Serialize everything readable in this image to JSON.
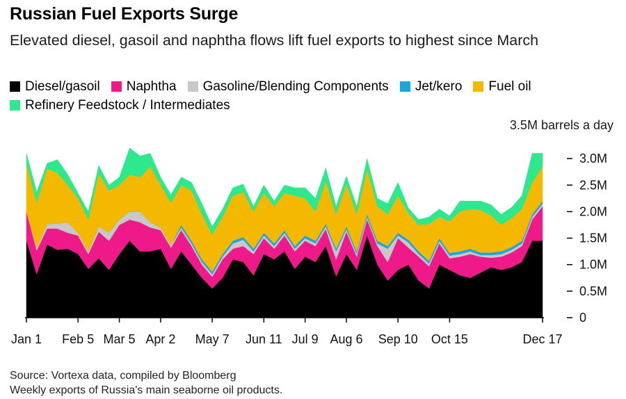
{
  "title": "Russian Fuel Exports Surge",
  "subtitle": "Elevated diesel, gasoil and naphtha flows lift fuel exports to highest since March",
  "unit_label": "3.5M barrels a day",
  "source": "Source: Vortexa data, compiled by Bloomberg",
  "note": "Weekly exports of Russia's main seaborne oil products.",
  "chart_data": {
    "type": "area",
    "stacked": true,
    "unit": "M barrels a day",
    "ylim": [
      0,
      3.5
    ],
    "y_ticks": [
      0,
      0.5,
      1,
      1.5,
      2,
      2.5,
      3
    ],
    "y_tick_labels": [
      "0",
      "0.5M",
      "1.0M",
      "1.5M",
      "2.0M",
      "2.5M",
      "3.0M"
    ],
    "y_axis_side": "right",
    "grid": false,
    "legend_position": "top",
    "x_tick_labels": [
      "Jan 1",
      "Feb 5",
      "Mar 5",
      "Apr 2",
      "May 7",
      "Jun 11",
      "Jul 9",
      "Aug 6",
      "Sep 10",
      "Oct 15",
      "Dec 17"
    ],
    "x_tick_weeks": [
      1,
      6,
      10,
      14,
      19,
      24,
      28,
      32,
      37,
      42,
      51
    ],
    "x": [
      1,
      2,
      3,
      4,
      5,
      6,
      7,
      8,
      9,
      10,
      11,
      12,
      13,
      14,
      15,
      16,
      17,
      18,
      19,
      20,
      21,
      22,
      23,
      24,
      25,
      26,
      27,
      28,
      29,
      30,
      31,
      32,
      33,
      34,
      35,
      36,
      37,
      38,
      39,
      40,
      41,
      42,
      43,
      44,
      45,
      46,
      47,
      48,
      49,
      50,
      51
    ],
    "series": [
      {
        "name": "Diesel/gasoil",
        "color": "#000000",
        "values": [
          1.45,
          0.82,
          1.38,
          1.28,
          1.3,
          1.2,
          0.92,
          1.12,
          0.9,
          1.2,
          1.45,
          1.25,
          1.25,
          1.3,
          0.92,
          1.25,
          1.0,
          0.75,
          0.55,
          0.75,
          1.1,
          1.05,
          0.8,
          1.2,
          1.1,
          1.25,
          0.92,
          1.15,
          1.05,
          1.35,
          0.78,
          1.2,
          0.9,
          1.55,
          1.0,
          0.7,
          0.9,
          1.0,
          0.7,
          0.55,
          1.0,
          0.9,
          0.8,
          0.75,
          0.85,
          0.95,
          0.9,
          0.95,
          1.05,
          1.45,
          1.45
        ]
      },
      {
        "name": "Naphtha",
        "color": "#ee1a8a",
        "values": [
          0.55,
          0.45,
          0.3,
          0.4,
          0.3,
          0.35,
          0.28,
          0.5,
          0.55,
          0.55,
          0.4,
          0.55,
          0.45,
          0.35,
          0.4,
          0.4,
          0.35,
          0.25,
          0.22,
          0.35,
          0.2,
          0.3,
          0.4,
          0.3,
          0.2,
          0.3,
          0.33,
          0.3,
          0.3,
          0.32,
          0.32,
          0.42,
          0.25,
          0.3,
          0.35,
          0.35,
          0.6,
          0.32,
          0.45,
          0.42,
          0.4,
          0.22,
          0.35,
          0.45,
          0.3,
          0.18,
          0.25,
          0.28,
          0.3,
          0.4,
          0.65
        ]
      },
      {
        "name": "Gasoline/Blending Components",
        "color": "#c8c8c8",
        "values": [
          0.0,
          0.05,
          0.08,
          0.1,
          0.2,
          0.05,
          0.05,
          0.1,
          0.15,
          0.1,
          0.15,
          0.2,
          0.1,
          0.05,
          0.05,
          0.05,
          0.05,
          0.05,
          0.05,
          0.05,
          0.1,
          0.12,
          0.05,
          0.05,
          0.05,
          0.05,
          0.05,
          0.05,
          0.05,
          0.05,
          0.15,
          0.05,
          0.05,
          0.05,
          0.05,
          0.25,
          0.05,
          0.1,
          0.05,
          0.05,
          0.05,
          0.05,
          0.05,
          0.05,
          0.03,
          0.05,
          0.05,
          0.05,
          0.05,
          0.05,
          0.05
        ]
      },
      {
        "name": "Jet/kero",
        "color": "#1aa6e0",
        "values": [
          0.0,
          0.0,
          0.0,
          0.0,
          0.0,
          0.0,
          0.0,
          0.0,
          0.0,
          0.0,
          0.0,
          0.0,
          0.0,
          0.0,
          0.0,
          0.05,
          0.05,
          0.05,
          0.05,
          0.05,
          0.05,
          0.05,
          0.05,
          0.05,
          0.05,
          0.05,
          0.05,
          0.05,
          0.05,
          0.05,
          0.05,
          0.05,
          0.05,
          0.05,
          0.05,
          0.05,
          0.05,
          0.05,
          0.05,
          0.05,
          0.05,
          0.05,
          0.05,
          0.05,
          0.05,
          0.05,
          0.05,
          0.05,
          0.05,
          0.05,
          0.05
        ]
      },
      {
        "name": "Fuel oil",
        "color": "#f5b800",
        "values": [
          0.9,
          0.85,
          1.05,
          0.95,
          0.7,
          0.65,
          0.6,
          1.0,
          0.8,
          0.65,
          0.7,
          0.65,
          1.05,
          0.8,
          0.8,
          0.75,
          0.95,
          0.85,
          0.7,
          0.7,
          0.85,
          0.85,
          0.7,
          0.75,
          0.7,
          0.7,
          0.95,
          0.7,
          0.55,
          0.8,
          0.65,
          0.8,
          0.7,
          0.85,
          0.65,
          0.6,
          0.7,
          0.5,
          0.5,
          0.7,
          0.4,
          0.6,
          0.75,
          0.75,
          0.8,
          0.7,
          0.5,
          0.55,
          0.6,
          0.6,
          0.65
        ]
      },
      {
        "name": "Refinery Feedstock / Intermediates",
        "color": "#2ee88e",
        "values": [
          0.2,
          0.2,
          0.1,
          0.25,
          0.2,
          0.1,
          0.15,
          0.15,
          0.1,
          0.15,
          0.5,
          0.4,
          0.25,
          0.15,
          0.15,
          0.15,
          0.15,
          0.2,
          0.15,
          0.15,
          0.15,
          0.15,
          0.1,
          0.15,
          0.1,
          0.15,
          0.15,
          0.2,
          0.25,
          0.25,
          0.15,
          0.15,
          0.15,
          0.2,
          0.15,
          0.2,
          0.25,
          0.1,
          0.1,
          0.13,
          0.15,
          0.1,
          0.2,
          0.15,
          0.17,
          0.2,
          0.2,
          0.2,
          0.25,
          0.55,
          0.25
        ]
      }
    ]
  }
}
